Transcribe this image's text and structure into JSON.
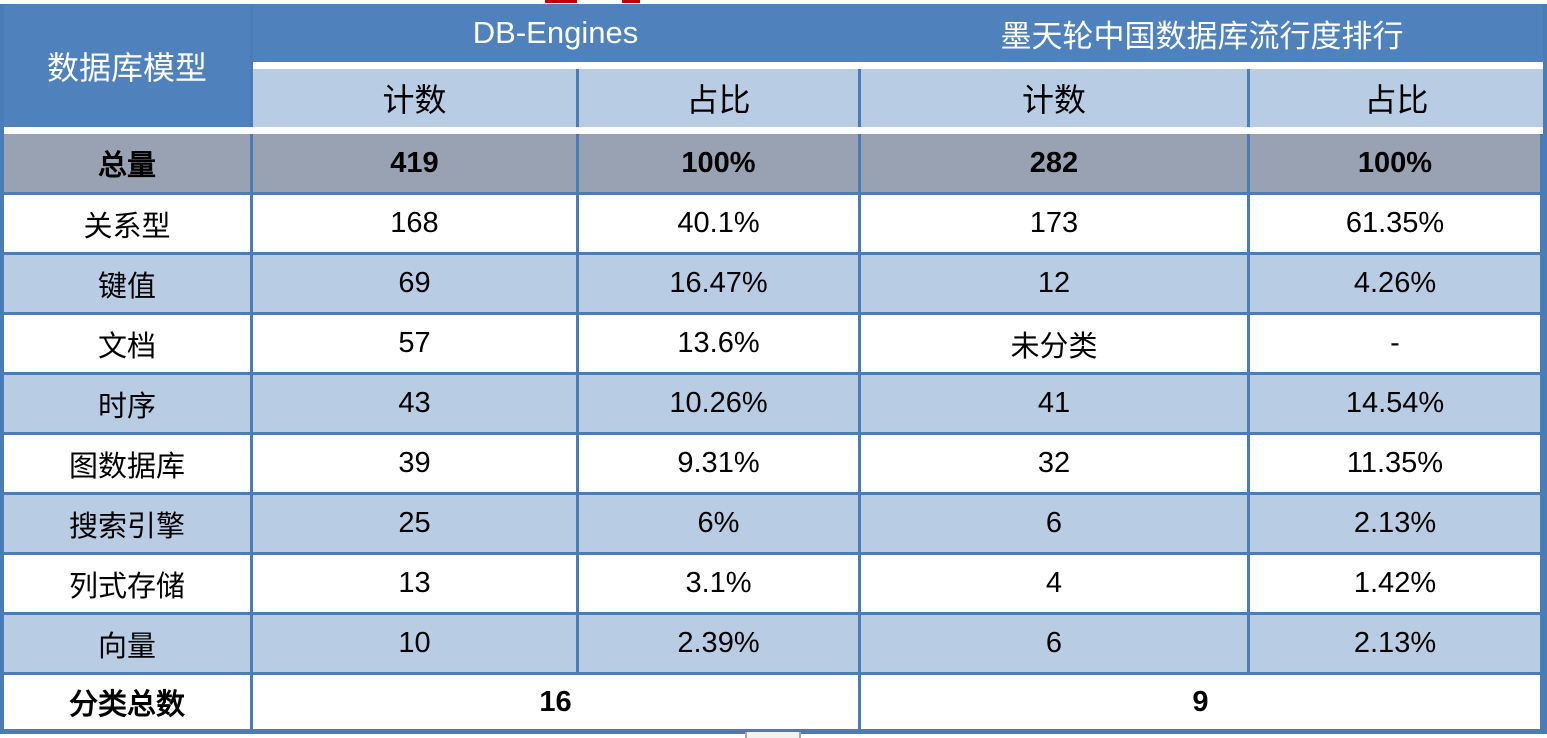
{
  "colors": {
    "header_blue": "#4F81BD",
    "subheader_light_blue": "#B8CCE4",
    "total_row_gray": "#98A2B2",
    "row_alt_blue": "#B8CCE4",
    "border_blue": "#4A7DB8",
    "header_text": "#FFFFFF",
    "body_text": "#000000",
    "artifact_red": "#C00000"
  },
  "chart_data": {
    "type": "table",
    "title": "",
    "row_header": "数据库模型",
    "groups": [
      {
        "label": "DB-Engines",
        "columns": [
          "计数",
          "占比"
        ]
      },
      {
        "label": "墨天轮中国数据库流行度排行",
        "columns": [
          "计数",
          "占比"
        ]
      }
    ],
    "total_row": {
      "label": "总量",
      "values": [
        "419",
        "100%",
        "282",
        "100%"
      ]
    },
    "rows": [
      {
        "label": "关系型",
        "values": [
          "168",
          "40.1%",
          "173",
          "61.35%"
        ]
      },
      {
        "label": "键值",
        "values": [
          "69",
          "16.47%",
          "12",
          "4.26%"
        ]
      },
      {
        "label": "文档",
        "values": [
          "57",
          "13.6%",
          "未分类",
          "-"
        ]
      },
      {
        "label": "时序",
        "values": [
          "43",
          "10.26%",
          "41",
          "14.54%"
        ]
      },
      {
        "label": "图数据库",
        "values": [
          "39",
          "9.31%",
          "32",
          "11.35%"
        ]
      },
      {
        "label": "搜索引擎",
        "values": [
          "25",
          "6%",
          "6",
          "2.13%"
        ]
      },
      {
        "label": "列式存储",
        "values": [
          "13",
          "3.1%",
          "4",
          "1.42%"
        ]
      },
      {
        "label": "向量",
        "values": [
          "10",
          "2.39%",
          "6",
          "2.13%"
        ]
      }
    ],
    "footer_row": {
      "label": "分类总数",
      "values": [
        "16",
        "9"
      ]
    }
  }
}
